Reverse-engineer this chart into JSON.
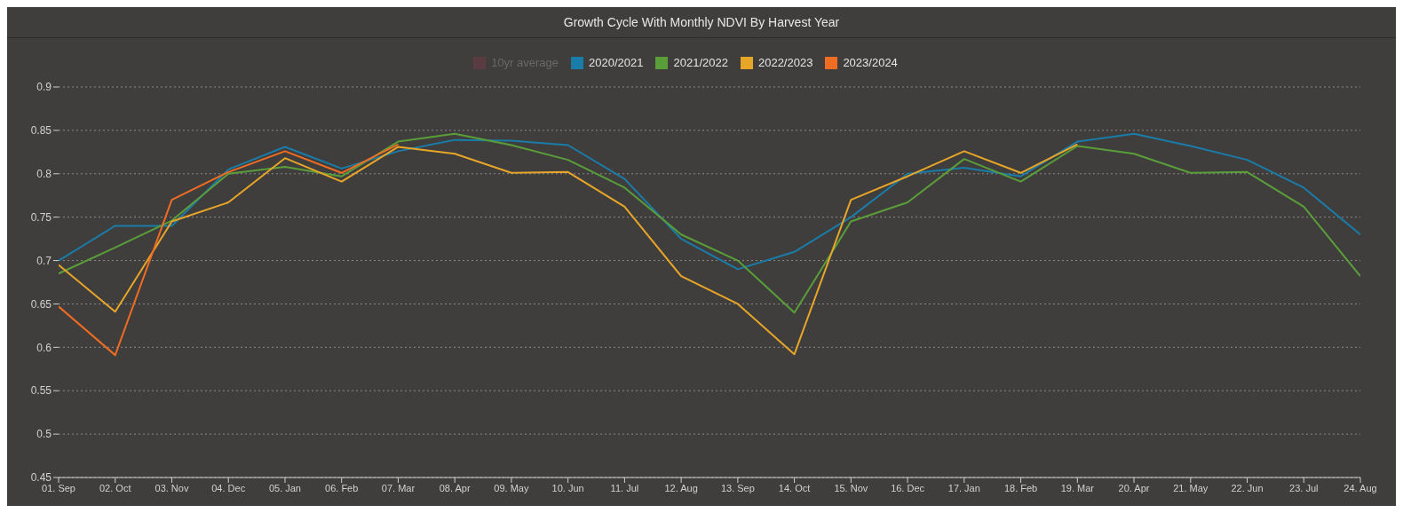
{
  "chart_data": {
    "type": "line",
    "title": "Growth Cycle With Monthly NDVI By Harvest Year",
    "categories": [
      "01. Sep",
      "02. Oct",
      "03. Nov",
      "04. Dec",
      "05. Jan",
      "06. Feb",
      "07. Mar",
      "08. Apr",
      "09. May",
      "10. Jun",
      "11. Jul",
      "12. Aug",
      "13. Sep",
      "14. Oct",
      "15. Nov",
      "16. Dec",
      "17. Jan",
      "18. Feb",
      "19. Mar",
      "20. Apr",
      "21. May",
      "22. Jun",
      "23. Jul",
      "24. Aug"
    ],
    "series": [
      {
        "name": "10yr average",
        "color": "#6b3a45",
        "values": [
          null,
          null,
          null,
          null,
          null,
          null,
          null,
          null,
          null,
          null,
          null,
          null,
          null,
          null,
          null,
          null,
          null,
          null,
          null,
          null,
          null,
          null,
          null,
          null
        ]
      },
      {
        "name": "2020/2021",
        "color": "#1a7ca8",
        "values": [
          0.7,
          0.74,
          0.74,
          0.805,
          0.831,
          0.806,
          0.826,
          0.839,
          0.838,
          0.833,
          0.794,
          0.725,
          0.69,
          0.71,
          0.75,
          0.8,
          0.807,
          0.797,
          0.837,
          0.846,
          0.832,
          0.816,
          0.784,
          0.73
        ]
      },
      {
        "name": "2021/2022",
        "color": "#5a9e3a",
        "values": [
          0.685,
          0.715,
          0.746,
          0.8,
          0.808,
          0.797,
          0.837,
          0.846,
          0.833,
          0.816,
          0.784,
          0.73,
          0.7,
          0.64,
          0.745,
          0.767,
          0.817,
          0.791,
          0.832,
          0.823,
          0.801,
          0.802,
          0.762,
          0.682
        ]
      },
      {
        "name": "2022/2023",
        "color": "#e8a628",
        "values": [
          0.695,
          0.641,
          0.745,
          0.767,
          0.818,
          0.791,
          0.831,
          0.823,
          0.801,
          0.802,
          0.762,
          0.682,
          0.65,
          0.592,
          0.77,
          0.797,
          0.826,
          0.801,
          0.834,
          null,
          null,
          null,
          null,
          null
        ]
      },
      {
        "name": "2023/2024",
        "color": "#ef6c22",
        "values": [
          0.647,
          0.591,
          0.77,
          0.802,
          0.826,
          0.801,
          0.834,
          null,
          null,
          null,
          null,
          null,
          null,
          null,
          null,
          null,
          null,
          null,
          null,
          null,
          null,
          null,
          null,
          null
        ]
      }
    ],
    "ylim": [
      0.45,
      0.9
    ],
    "yticks": [
      0.45,
      0.5,
      0.55,
      0.6,
      0.65,
      0.7,
      0.75,
      0.8,
      0.85,
      0.9
    ],
    "grid": "y",
    "legend": "top",
    "marker": "none",
    "line_style": "solid"
  }
}
